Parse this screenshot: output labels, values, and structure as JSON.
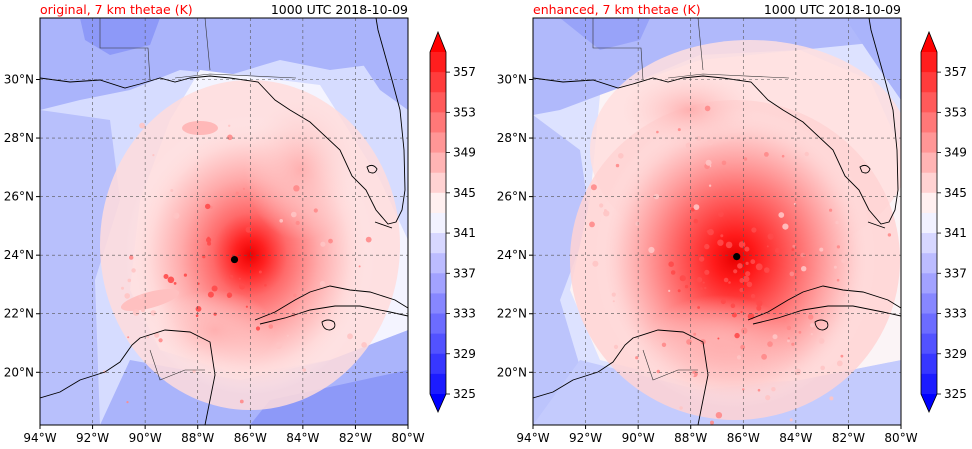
{
  "colors": {
    "title_left": "#ff0000",
    "title_right": "#000000",
    "scale_low": "#1010ff",
    "scale_mid": "#ffffff",
    "scale_high": "#ff1010",
    "coast": "#000000",
    "grid": "#555555"
  },
  "panels": [
    {
      "title": "original, 7 km thetae (K)",
      "time": "1000 UTC 2018-10-09",
      "storm_center": {
        "lon": -86.6,
        "lat": 23.85
      },
      "colorbar_ticks": [
        "357",
        "353",
        "349",
        "345",
        "341",
        "337",
        "333",
        "329",
        "325"
      ]
    },
    {
      "title": "enhanced, 7 km thetae (K)",
      "time": "1000 UTC 2018-10-09",
      "storm_center": {
        "lon": -86.25,
        "lat": 23.95
      },
      "colorbar_ticks": [
        "357",
        "353",
        "349",
        "345",
        "341",
        "337",
        "333",
        "329",
        "325"
      ]
    }
  ],
  "lon_labels": [
    "94°W",
    "92°W",
    "90°W",
    "88°W",
    "86°W",
    "84°W",
    "82°W",
    "80°W"
  ],
  "lat_labels": [
    "30°N",
    "28°N",
    "26°N",
    "24°N",
    "22°N",
    "20°N"
  ],
  "lon_values": [
    -94,
    -92,
    -90,
    -88,
    -86,
    -84,
    -82,
    -80
  ],
  "lat_values": [
    30,
    28,
    26,
    24,
    22,
    20
  ],
  "extent": {
    "lon_min": -94,
    "lon_max": -80,
    "lat_min": 18.2,
    "lat_max": 32.1
  },
  "contour_levels": {
    "min": 325,
    "max": 359,
    "step": 2,
    "unit": "K"
  }
}
